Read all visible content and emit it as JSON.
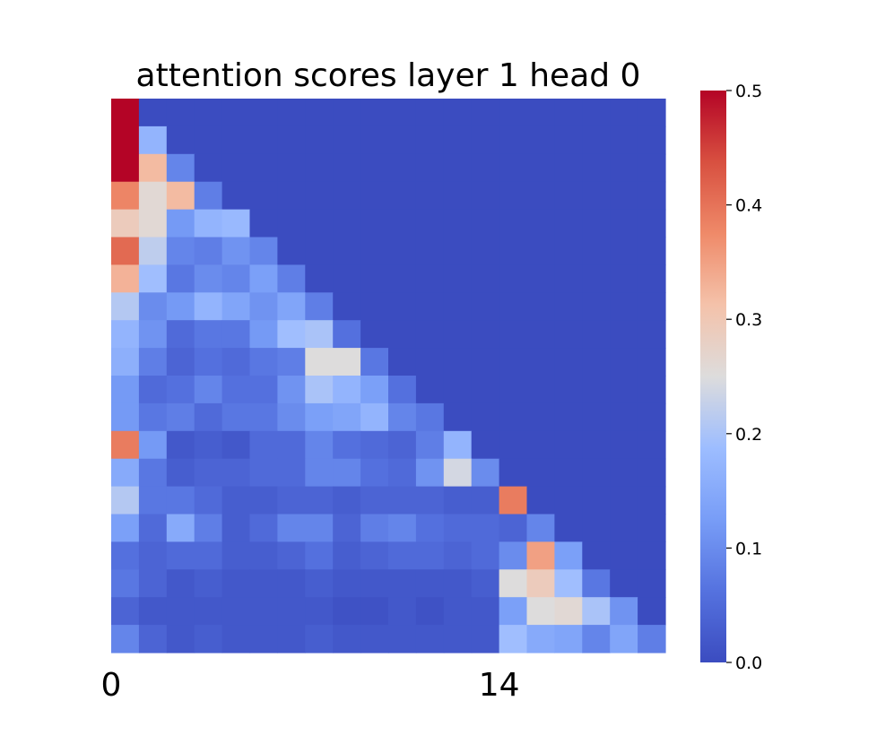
{
  "chart_data": {
    "type": "heatmap",
    "title": "attention scores layer 1 head 0",
    "rows": 20,
    "cols": 20,
    "colormap": "coolwarm",
    "vmin": 0.0,
    "vmax": 0.5,
    "x_tick_positions": [
      0,
      14
    ],
    "x_tick_labels": [
      "0",
      "14"
    ],
    "colorbar_ticks": [
      0.0,
      0.1,
      0.2,
      0.3,
      0.4,
      0.5
    ],
    "colorbar_tick_labels": [
      "0.0",
      "0.1",
      "0.2",
      "0.3",
      "0.4",
      "0.5"
    ],
    "values": [
      [
        0.5,
        0.0,
        0.0,
        0.0,
        0.0,
        0.0,
        0.0,
        0.0,
        0.0,
        0.0,
        0.0,
        0.0,
        0.0,
        0.0,
        0.0,
        0.0,
        0.0,
        0.0,
        0.0,
        0.0
      ],
      [
        0.5,
        0.17,
        0.0,
        0.0,
        0.0,
        0.0,
        0.0,
        0.0,
        0.0,
        0.0,
        0.0,
        0.0,
        0.0,
        0.0,
        0.0,
        0.0,
        0.0,
        0.0,
        0.0,
        0.0
      ],
      [
        0.5,
        0.32,
        0.09,
        0.0,
        0.0,
        0.0,
        0.0,
        0.0,
        0.0,
        0.0,
        0.0,
        0.0,
        0.0,
        0.0,
        0.0,
        0.0,
        0.0,
        0.0,
        0.0,
        0.0
      ],
      [
        0.38,
        0.26,
        0.32,
        0.08,
        0.0,
        0.0,
        0.0,
        0.0,
        0.0,
        0.0,
        0.0,
        0.0,
        0.0,
        0.0,
        0.0,
        0.0,
        0.0,
        0.0,
        0.0,
        0.0
      ],
      [
        0.29,
        0.26,
        0.12,
        0.17,
        0.18,
        0.0,
        0.0,
        0.0,
        0.0,
        0.0,
        0.0,
        0.0,
        0.0,
        0.0,
        0.0,
        0.0,
        0.0,
        0.0,
        0.0,
        0.0
      ],
      [
        0.41,
        0.22,
        0.09,
        0.08,
        0.11,
        0.09,
        0.0,
        0.0,
        0.0,
        0.0,
        0.0,
        0.0,
        0.0,
        0.0,
        0.0,
        0.0,
        0.0,
        0.0,
        0.0,
        0.0
      ],
      [
        0.33,
        0.19,
        0.07,
        0.1,
        0.09,
        0.13,
        0.08,
        0.0,
        0.0,
        0.0,
        0.0,
        0.0,
        0.0,
        0.0,
        0.0,
        0.0,
        0.0,
        0.0,
        0.0,
        0.0
      ],
      [
        0.21,
        0.1,
        0.12,
        0.17,
        0.14,
        0.11,
        0.14,
        0.08,
        0.0,
        0.0,
        0.0,
        0.0,
        0.0,
        0.0,
        0.0,
        0.0,
        0.0,
        0.0,
        0.0,
        0.0
      ],
      [
        0.17,
        0.11,
        0.05,
        0.07,
        0.07,
        0.12,
        0.19,
        0.2,
        0.06,
        0.0,
        0.0,
        0.0,
        0.0,
        0.0,
        0.0,
        0.0,
        0.0,
        0.0,
        0.0,
        0.0
      ],
      [
        0.16,
        0.08,
        0.04,
        0.06,
        0.05,
        0.07,
        0.08,
        0.25,
        0.25,
        0.07,
        0.0,
        0.0,
        0.0,
        0.0,
        0.0,
        0.0,
        0.0,
        0.0,
        0.0,
        0.0
      ],
      [
        0.12,
        0.05,
        0.06,
        0.09,
        0.06,
        0.06,
        0.11,
        0.2,
        0.17,
        0.13,
        0.06,
        0.0,
        0.0,
        0.0,
        0.0,
        0.0,
        0.0,
        0.0,
        0.0,
        0.0
      ],
      [
        0.12,
        0.07,
        0.08,
        0.05,
        0.07,
        0.07,
        0.1,
        0.13,
        0.14,
        0.17,
        0.09,
        0.07,
        0.0,
        0.0,
        0.0,
        0.0,
        0.0,
        0.0,
        0.0,
        0.0
      ],
      [
        0.39,
        0.12,
        0.02,
        0.03,
        0.02,
        0.05,
        0.05,
        0.09,
        0.06,
        0.05,
        0.04,
        0.08,
        0.17,
        0.0,
        0.0,
        0.0,
        0.0,
        0.0,
        0.0,
        0.0
      ],
      [
        0.15,
        0.07,
        0.03,
        0.04,
        0.04,
        0.05,
        0.05,
        0.09,
        0.09,
        0.06,
        0.05,
        0.11,
        0.24,
        0.1,
        0.0,
        0.0,
        0.0,
        0.0,
        0.0,
        0.0
      ],
      [
        0.21,
        0.07,
        0.07,
        0.05,
        0.03,
        0.03,
        0.04,
        0.04,
        0.03,
        0.04,
        0.04,
        0.04,
        0.03,
        0.03,
        0.39,
        0.0,
        0.0,
        0.0,
        0.0,
        0.0
      ],
      [
        0.13,
        0.05,
        0.15,
        0.08,
        0.03,
        0.05,
        0.09,
        0.09,
        0.04,
        0.08,
        0.09,
        0.06,
        0.05,
        0.05,
        0.04,
        0.09,
        0.0,
        0.0,
        0.0,
        0.0
      ],
      [
        0.06,
        0.04,
        0.05,
        0.05,
        0.03,
        0.03,
        0.04,
        0.06,
        0.03,
        0.04,
        0.05,
        0.05,
        0.04,
        0.05,
        0.1,
        0.35,
        0.13,
        0.0,
        0.0,
        0.0
      ],
      [
        0.07,
        0.04,
        0.02,
        0.03,
        0.02,
        0.02,
        0.02,
        0.03,
        0.02,
        0.02,
        0.02,
        0.02,
        0.02,
        0.03,
        0.25,
        0.29,
        0.19,
        0.07,
        0.0,
        0.0
      ],
      [
        0.04,
        0.02,
        0.02,
        0.02,
        0.02,
        0.02,
        0.02,
        0.02,
        0.01,
        0.01,
        0.02,
        0.01,
        0.02,
        0.02,
        0.13,
        0.25,
        0.26,
        0.2,
        0.11,
        0.0
      ],
      [
        0.09,
        0.04,
        0.02,
        0.03,
        0.02,
        0.02,
        0.02,
        0.03,
        0.02,
        0.02,
        0.02,
        0.02,
        0.02,
        0.02,
        0.19,
        0.15,
        0.14,
        0.09,
        0.14,
        0.08
      ]
    ]
  }
}
